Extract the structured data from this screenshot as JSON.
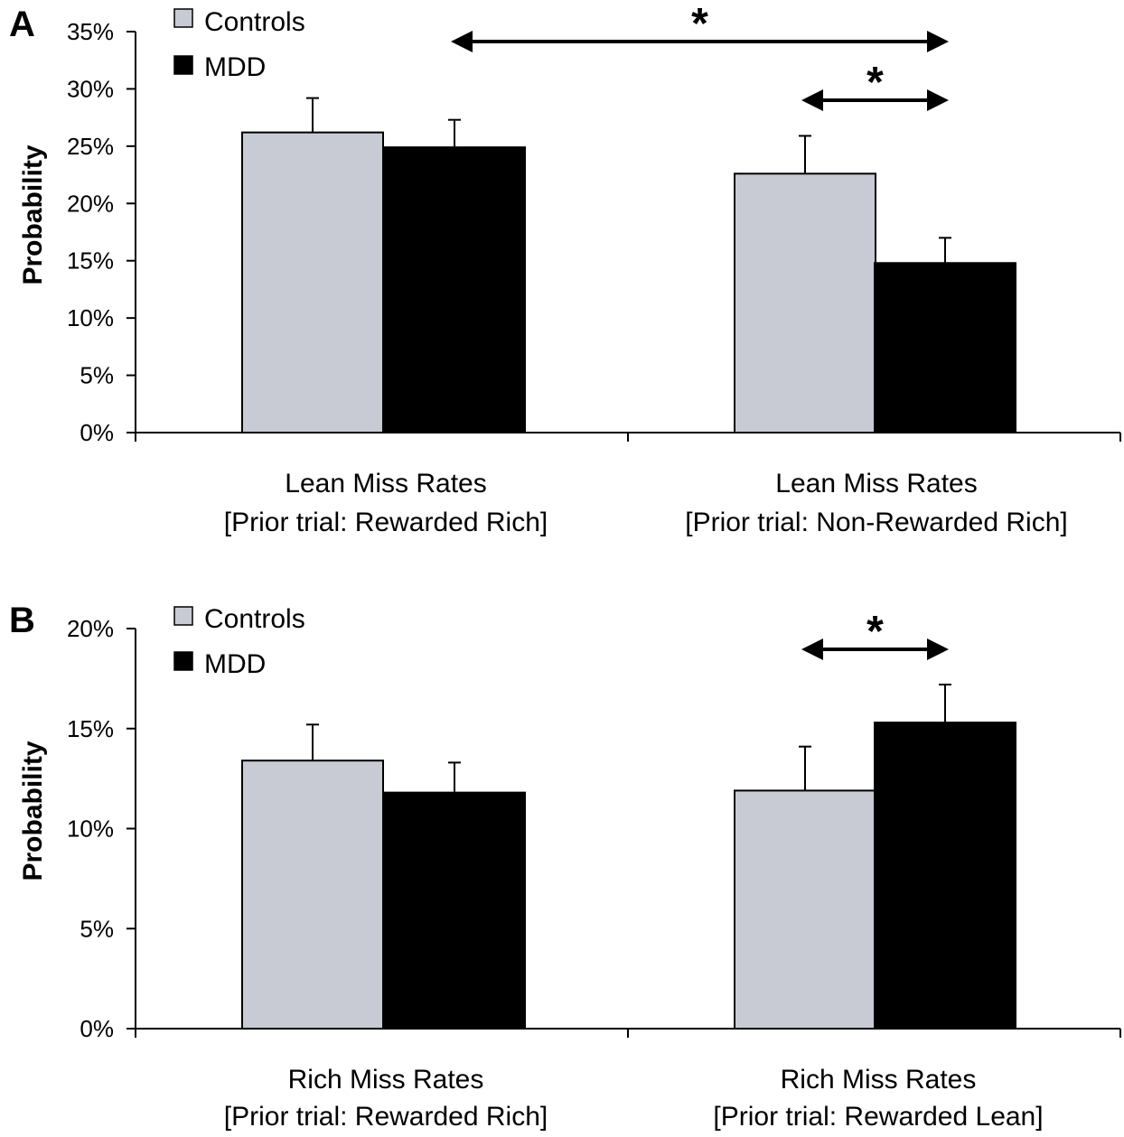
{
  "chart_data": [
    {
      "type": "bar",
      "panel_label": "A",
      "ylabel": "Probability",
      "categories": [
        [
          "Lean Miss Rates",
          "[Prior trial: Rewarded Rich]"
        ],
        [
          "Lean Miss Rates",
          "[Prior trial: Non-Rewarded Rich]"
        ]
      ],
      "ylim": [
        0,
        35
      ],
      "yticks": [
        0,
        5,
        10,
        15,
        20,
        25,
        30,
        35
      ],
      "ytick_labels": [
        "0%",
        "5%",
        "10%",
        "15%",
        "20%",
        "25%",
        "30%",
        "35%"
      ],
      "series": [
        {
          "name": "Controls",
          "color": "#c8cbd3",
          "values": [
            26.2,
            22.6
          ],
          "errors": [
            3.0,
            3.3
          ]
        },
        {
          "name": "MDD",
          "color": "#000000",
          "values": [
            24.9,
            14.8
          ],
          "errors": [
            2.4,
            2.2
          ]
        }
      ],
      "legend": "top-left",
      "grid": false,
      "significance": [
        {
          "label": "*",
          "from": {
            "category": 0,
            "series": 1
          },
          "to": {
            "category": 1,
            "series": 1
          }
        },
        {
          "label": "*",
          "from": {
            "category": 1,
            "series": 0
          },
          "to": {
            "category": 1,
            "series": 1
          }
        }
      ]
    },
    {
      "type": "bar",
      "panel_label": "B",
      "ylabel": "Probability",
      "categories": [
        [
          "Rich Miss Rates",
          "[Prior trial: Rewarded Rich]"
        ],
        [
          "Rich Miss Rates",
          "[Prior trial: Rewarded Lean]"
        ]
      ],
      "ylim": [
        0,
        20
      ],
      "yticks": [
        0,
        5,
        10,
        15,
        20
      ],
      "ytick_labels": [
        "0%",
        "5%",
        "10%",
        "15%",
        "20%"
      ],
      "series": [
        {
          "name": "Controls",
          "color": "#c8cbd3",
          "values": [
            13.4,
            11.9
          ],
          "errors": [
            1.8,
            2.2
          ]
        },
        {
          "name": "MDD",
          "color": "#000000",
          "values": [
            11.8,
            15.3
          ],
          "errors": [
            1.5,
            1.9
          ]
        }
      ],
      "legend": "top-left",
      "grid": false,
      "significance": [
        {
          "label": "*",
          "from": {
            "category": 1,
            "series": 0
          },
          "to": {
            "category": 1,
            "series": 1
          }
        }
      ]
    }
  ]
}
